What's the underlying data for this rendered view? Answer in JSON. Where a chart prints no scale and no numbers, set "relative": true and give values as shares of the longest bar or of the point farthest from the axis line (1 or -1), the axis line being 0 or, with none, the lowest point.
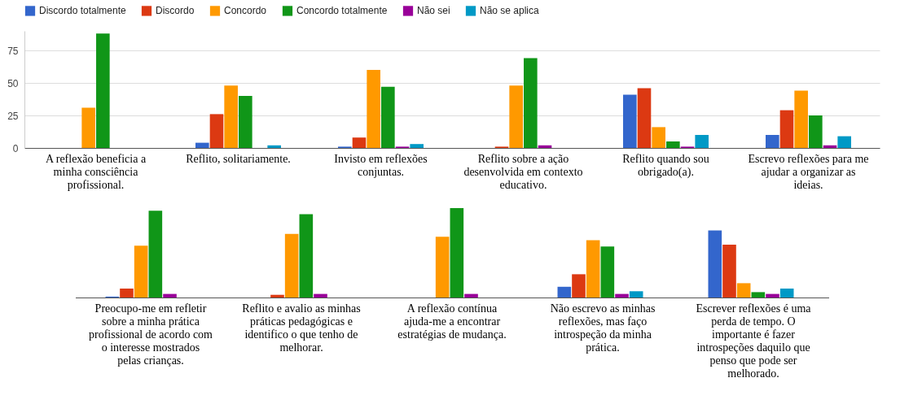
{
  "chart_data": [
    {
      "type": "bar",
      "categories": [
        "A reflexão beneficia a minha consciência profissional.",
        "Reflito, solitariamente.",
        "Invisto em reflexões conjuntas.",
        "Reflito sobre a ação desenvolvida em contexto educativo.",
        "Reflito quando sou obrigado(a).",
        "Escrevo reflexões para me ajudar a organizar as ideias."
      ],
      "series": [
        {
          "name": "Discordo totalmente",
          "color": "#3366cc",
          "values": [
            0,
            4,
            1,
            0,
            41,
            10
          ]
        },
        {
          "name": "Discordo",
          "color": "#dc3912",
          "values": [
            0,
            26,
            8,
            1,
            46,
            29
          ]
        },
        {
          "name": "Concordo",
          "color": "#ff9900",
          "values": [
            31,
            48,
            60,
            48,
            16,
            44
          ]
        },
        {
          "name": "Concordo totalmente",
          "color": "#109618",
          "values": [
            88,
            40,
            47,
            69,
            5,
            25
          ]
        },
        {
          "name": "Não sei",
          "color": "#990099",
          "values": [
            0,
            0,
            1,
            2,
            1,
            2
          ]
        },
        {
          "name": "Não se aplica",
          "color": "#0099c6",
          "values": [
            0,
            2,
            3,
            0,
            10,
            9
          ]
        }
      ],
      "ylim": [
        0,
        90
      ],
      "yticks": [
        0,
        25,
        50,
        75
      ],
      "grid": "y",
      "legend": "top left"
    },
    {
      "type": "bar",
      "categories": [
        "Preocupo-me em refletir sobre a minha prática profissional de acordo com o interesse mostrados pelas crianças.",
        "Reflito e avalio as minhas práticas pedagógicas e identifico o que tenho de melhorar.",
        "A reflexão contínua ajuda-me a encontrar estratégias de mudança.",
        "Não escrevo as minhas reflexões, mas faço introspeção da minha prática.",
        "Escrever reflexões é uma perda de tempo. O importante é fazer introspeções daquilo que penso que pode ser melhorado."
      ],
      "series": [
        {
          "color": "#3366cc",
          "values": [
            0.01,
            0,
            0,
            0.12,
            0.75
          ]
        },
        {
          "color": "#dc3912",
          "values": [
            0.1,
            0.03,
            0,
            0.26,
            0.59
          ]
        },
        {
          "color": "#ff9900",
          "values": [
            0.58,
            0.71,
            0.68,
            0.64,
            0.16
          ]
        },
        {
          "color": "#109618",
          "values": [
            0.97,
            0.93,
            1,
            0.57,
            0.06
          ]
        },
        {
          "color": "#990099",
          "values": [
            0.04,
            0.04,
            0.04,
            0.04,
            0.04
          ]
        },
        {
          "color": "#0099c6",
          "values": [
            0,
            0,
            0,
            0.07,
            0.1
          ]
        }
      ],
      "relative": true
    }
  ]
}
